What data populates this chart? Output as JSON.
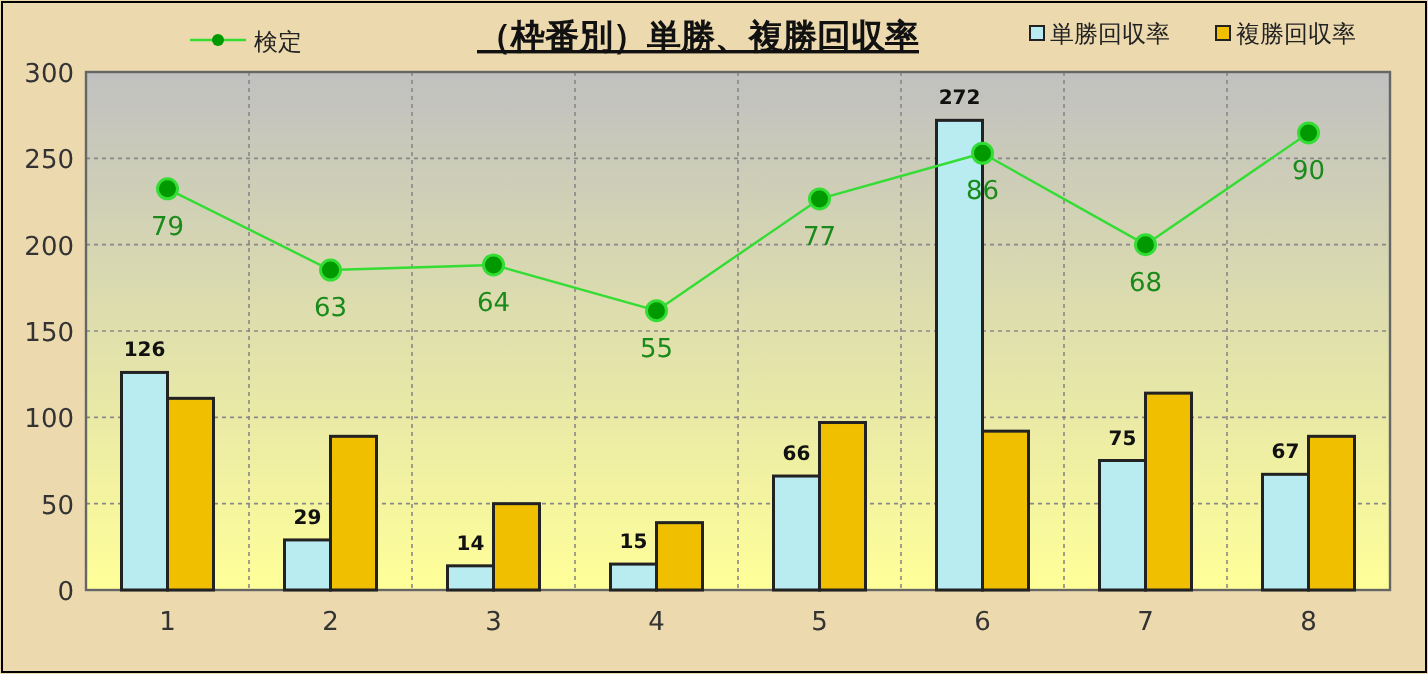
{
  "chart_data": {
    "type": "bar",
    "title": "（枠番別）単勝、複勝回収率",
    "categories": [
      "1",
      "2",
      "3",
      "4",
      "5",
      "6",
      "7",
      "8"
    ],
    "series": [
      {
        "name": "単勝回収率",
        "color": "#b8ecf0",
        "values": [
          126,
          29,
          14,
          15,
          66,
          272,
          75,
          67
        ],
        "value_labels": [
          "126",
          "29",
          "14",
          "15",
          "66",
          "272",
          "75",
          "67"
        ]
      },
      {
        "name": "複勝回収率",
        "color": "#f0c000",
        "values": [
          111,
          89,
          50,
          39,
          97,
          92,
          114,
          89
        ]
      },
      {
        "name": "検定",
        "type": "line",
        "axis": "y2",
        "color": "#33dd33",
        "marker": "circle",
        "values": [
          79,
          63,
          64,
          55,
          77,
          86,
          68,
          90
        ],
        "value_labels": [
          "79",
          "63",
          "64",
          "55",
          "77",
          "86",
          "68",
          "90"
        ]
      }
    ],
    "ylim": [
      0,
      300
    ],
    "yticks": [
      0,
      50,
      100,
      150,
      200,
      250,
      300
    ],
    "y2lim": [
      0,
      102
    ],
    "grid": true,
    "legend": "top"
  }
}
